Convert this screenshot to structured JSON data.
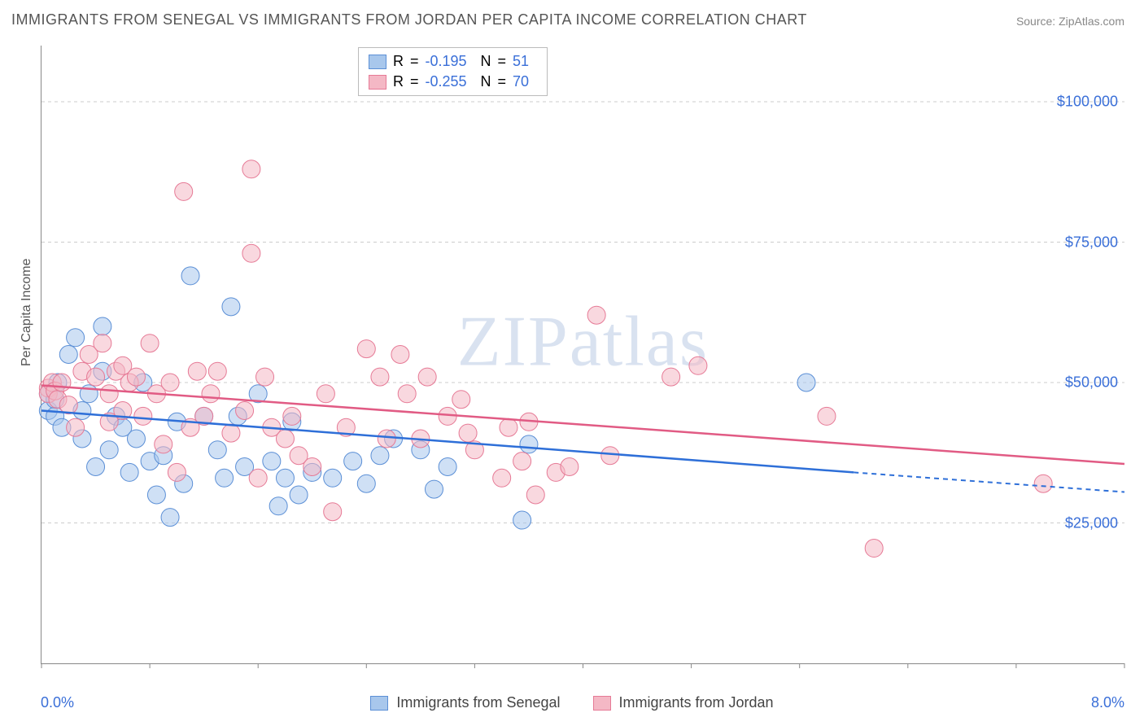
{
  "title": "IMMIGRANTS FROM SENEGAL VS IMMIGRANTS FROM JORDAN PER CAPITA INCOME CORRELATION CHART",
  "source": "Source: ZipAtlas.com",
  "ylabel": "Per Capita Income",
  "watermark": {
    "part1": "ZIP",
    "part2": "atlas"
  },
  "chart": {
    "type": "scatter",
    "xlim": [
      0.0,
      8.0
    ],
    "ylim": [
      0,
      110000
    ],
    "x_tick_positions": [
      0.0,
      0.8,
      1.6,
      2.4,
      3.2,
      4.0,
      4.8,
      5.6,
      6.4,
      7.2,
      8.0
    ],
    "x_start_label": "0.0%",
    "x_end_label": "8.0%",
    "y_ticks": [
      25000,
      50000,
      75000,
      100000
    ],
    "y_tick_labels": [
      "$25,000",
      "$50,000",
      "$75,000",
      "$100,000"
    ],
    "grid_color": "#cccccc",
    "background_color": "#ffffff",
    "axis_color": "#888888",
    "marker_radius": 11,
    "marker_opacity": 0.55,
    "series": [
      {
        "id": "senegal",
        "label": "Immigrants from Senegal",
        "color_fill": "#a8c7ec",
        "color_stroke": "#5b8fd6",
        "trend_color": "#2e6fd8",
        "R": "-0.195",
        "N": "51",
        "trend": {
          "x1": 0.0,
          "y1": 45000,
          "x2": 6.0,
          "y2": 34000,
          "dash_from": 6.0,
          "x3": 8.0,
          "y3": 30500
        },
        "points": [
          [
            0.05,
            48000
          ],
          [
            0.05,
            45000
          ],
          [
            0.1,
            47000
          ],
          [
            0.1,
            44000
          ],
          [
            0.12,
            50000
          ],
          [
            0.15,
            42000
          ],
          [
            0.2,
            55000
          ],
          [
            0.25,
            58000
          ],
          [
            0.3,
            45000
          ],
          [
            0.3,
            40000
          ],
          [
            0.35,
            48000
          ],
          [
            0.4,
            35000
          ],
          [
            0.45,
            52000
          ],
          [
            0.5,
            38000
          ],
          [
            0.55,
            44000
          ],
          [
            0.6,
            42000
          ],
          [
            0.65,
            34000
          ],
          [
            0.7,
            40000
          ],
          [
            0.75,
            50000
          ],
          [
            0.8,
            36000
          ],
          [
            0.85,
            30000
          ],
          [
            0.9,
            37000
          ],
          [
            0.95,
            26000
          ],
          [
            1.0,
            43000
          ],
          [
            1.05,
            32000
          ],
          [
            1.1,
            69000
          ],
          [
            1.2,
            44000
          ],
          [
            1.3,
            38000
          ],
          [
            1.35,
            33000
          ],
          [
            1.4,
            63500
          ],
          [
            1.45,
            44000
          ],
          [
            1.5,
            35000
          ],
          [
            1.6,
            48000
          ],
          [
            1.7,
            36000
          ],
          [
            1.75,
            28000
          ],
          [
            1.8,
            33000
          ],
          [
            1.85,
            43000
          ],
          [
            1.9,
            30000
          ],
          [
            2.0,
            34000
          ],
          [
            2.15,
            33000
          ],
          [
            2.3,
            36000
          ],
          [
            2.4,
            32000
          ],
          [
            2.5,
            37000
          ],
          [
            2.6,
            40000
          ],
          [
            2.8,
            38000
          ],
          [
            2.9,
            31000
          ],
          [
            3.0,
            35000
          ],
          [
            3.55,
            25500
          ],
          [
            3.6,
            39000
          ],
          [
            5.65,
            50000
          ],
          [
            0.45,
            60000
          ]
        ]
      },
      {
        "id": "jordan",
        "label": "Immigrants from Jordan",
        "color_fill": "#f4b8c5",
        "color_stroke": "#e67a96",
        "trend_color": "#e15b84",
        "R": "-0.255",
        "N": "70",
        "trend": {
          "x1": 0.0,
          "y1": 49500,
          "x2": 8.0,
          "y2": 35500,
          "dash_from": 8.0,
          "x3": 8.0,
          "y3": 35500
        },
        "points": [
          [
            0.05,
            49000
          ],
          [
            0.05,
            48000
          ],
          [
            0.08,
            50000
          ],
          [
            0.1,
            48500
          ],
          [
            0.12,
            47000
          ],
          [
            0.15,
            50000
          ],
          [
            0.2,
            46000
          ],
          [
            0.25,
            42000
          ],
          [
            0.3,
            52000
          ],
          [
            0.35,
            55000
          ],
          [
            0.4,
            51000
          ],
          [
            0.45,
            57000
          ],
          [
            0.5,
            48000
          ],
          [
            0.55,
            52000
          ],
          [
            0.6,
            45000
          ],
          [
            0.6,
            53000
          ],
          [
            0.65,
            50000
          ],
          [
            0.7,
            51000
          ],
          [
            0.75,
            44000
          ],
          [
            0.8,
            57000
          ],
          [
            0.85,
            48000
          ],
          [
            0.9,
            39000
          ],
          [
            0.95,
            50000
          ],
          [
            1.0,
            34000
          ],
          [
            1.05,
            84000
          ],
          [
            1.1,
            42000
          ],
          [
            1.15,
            52000
          ],
          [
            1.2,
            44000
          ],
          [
            1.25,
            48000
          ],
          [
            1.3,
            52000
          ],
          [
            1.4,
            41000
          ],
          [
            1.5,
            45000
          ],
          [
            1.55,
            88000
          ],
          [
            1.55,
            73000
          ],
          [
            1.6,
            33000
          ],
          [
            1.65,
            51000
          ],
          [
            1.7,
            42000
          ],
          [
            1.8,
            40000
          ],
          [
            1.85,
            44000
          ],
          [
            1.9,
            37000
          ],
          [
            2.0,
            35000
          ],
          [
            2.1,
            48000
          ],
          [
            2.15,
            27000
          ],
          [
            2.25,
            42000
          ],
          [
            2.4,
            56000
          ],
          [
            2.5,
            51000
          ],
          [
            2.55,
            40000
          ],
          [
            2.65,
            55000
          ],
          [
            2.7,
            48000
          ],
          [
            2.8,
            40000
          ],
          [
            2.85,
            51000
          ],
          [
            3.0,
            44000
          ],
          [
            3.1,
            47000
          ],
          [
            3.15,
            41000
          ],
          [
            3.2,
            38000
          ],
          [
            3.4,
            33000
          ],
          [
            3.45,
            42000
          ],
          [
            3.55,
            36000
          ],
          [
            3.6,
            43000
          ],
          [
            3.65,
            30000
          ],
          [
            3.8,
            34000
          ],
          [
            3.9,
            35000
          ],
          [
            4.1,
            62000
          ],
          [
            4.2,
            37000
          ],
          [
            4.65,
            51000
          ],
          [
            4.85,
            53000
          ],
          [
            5.8,
            44000
          ],
          [
            6.15,
            20500
          ],
          [
            7.4,
            32000
          ],
          [
            0.5,
            43000
          ]
        ]
      }
    ]
  },
  "legend_top": {
    "R_label": "R",
    "N_label": "N",
    "eq": "="
  }
}
